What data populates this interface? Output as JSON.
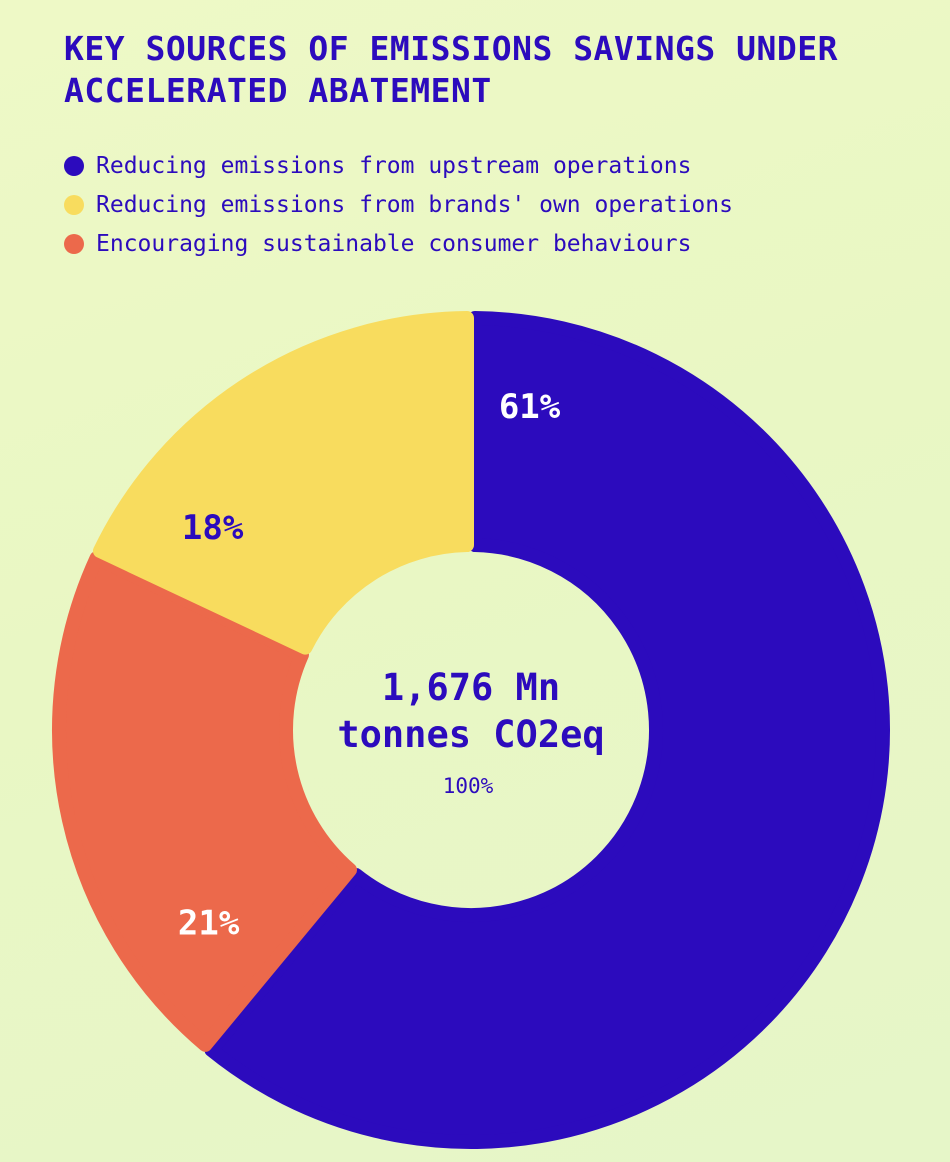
{
  "chart_data": {
    "type": "pie",
    "title": "KEY SOURCES OF EMISSIONS SAVINGS UNDER ACCELERATED ABATEMENT",
    "legend_position": "top-left",
    "categories": [
      "Reducing emissions from upstream operations",
      "Reducing emissions from brands' own operations",
      "Encouraging sustainable consumer behaviours"
    ],
    "values": [
      61,
      18,
      21
    ],
    "value_labels": [
      "61%",
      "18%",
      "21%"
    ],
    "colors": [
      "#2c0bbd",
      "#f8dc5e",
      "#ec694b"
    ],
    "label_colors": [
      "#ffffff",
      "#2c0bbd",
      "#ffffff"
    ],
    "slice_order": [
      0,
      2,
      1
    ],
    "center_text": {
      "line1": "1,676 Mn",
      "line2": "tonnes CO2eq",
      "sub": "100%"
    }
  }
}
